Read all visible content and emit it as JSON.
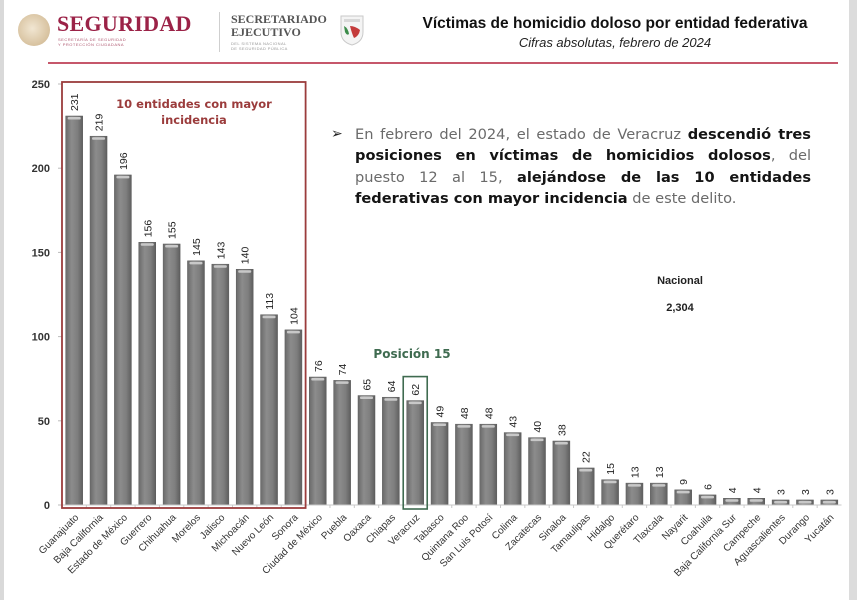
{
  "header": {
    "brand_primary": "SEGURIDAD",
    "brand_primary_sub_line1": "SECRETARÍA DE SEGURIDAD",
    "brand_primary_sub_line2": "Y PROTECCIÓN CIUDADANA",
    "brand_secondary_line1": "SECRETARIADO",
    "brand_secondary_line2": "EJECUTIVO",
    "brand_secondary_sub_line1": "DEL SISTEMA NACIONAL",
    "brand_secondary_sub_line2": "DE SEGURIDAD PÚBLICA",
    "icons": [
      "national-seal-icon",
      "sesnsp-shield-icon"
    ]
  },
  "note": {
    "bullet": "➢",
    "segments": [
      {
        "text": "En febrero del 2024, el estado de Veracruz ",
        "bold": false
      },
      {
        "text": "descendió tres posiciones en víctimas de homicidios dolosos",
        "bold": true
      },
      {
        "text": ", del puesto 12 al 15, ",
        "bold": false
      },
      {
        "text": "alejándose de las 10 entidades federativas con mayor incidencia",
        "bold": true
      },
      {
        "text": " de este delito.",
        "bold": false
      }
    ]
  },
  "national": {
    "label": "Nacional",
    "value": "2,304"
  },
  "colors": {
    "bar": "#7f7f7f",
    "bar_highlight": "#c8c8c8",
    "top10_box": "#9b3c3c",
    "position_box": "#3f6b50",
    "brand": "#9b2247",
    "rule": "#c6576b"
  },
  "chart_data": {
    "type": "bar",
    "title": "Víctimas de homicidio doloso por entidad federativa",
    "subtitle": "Cifras absolutas, febrero de 2024",
    "xlabel": "",
    "ylabel": "",
    "ylim": [
      0,
      250
    ],
    "yticks": [
      0,
      50,
      100,
      150,
      200,
      250
    ],
    "grid": false,
    "legend": "none",
    "categories": [
      "Guanajuato",
      "Baja California",
      "Estado de México",
      "Guerrero",
      "Chihuahua",
      "Morelos",
      "Jalisco",
      "Michoacán",
      "Nuevo León",
      "Sonora",
      "Ciudad de México",
      "Puebla",
      "Oaxaca",
      "Chiapas",
      "Veracruz",
      "Tabasco",
      "Quintana Roo",
      "San Luis Potosí",
      "Colima",
      "Zacatecas",
      "Sinaloa",
      "Tamaulipas",
      "Hidalgo",
      "Querétaro",
      "Tlaxcala",
      "Nayarit",
      "Coahuila",
      "Baja California Sur",
      "Campeche",
      "Aguascalientes",
      "Durango",
      "Yucatán"
    ],
    "values": [
      231,
      219,
      196,
      156,
      155,
      145,
      143,
      140,
      113,
      104,
      76,
      74,
      65,
      64,
      62,
      49,
      48,
      48,
      43,
      40,
      38,
      22,
      15,
      13,
      13,
      9,
      6,
      4,
      4,
      3,
      3,
      3
    ],
    "annotations": [
      {
        "text_line1": "10 entidades con mayor",
        "text_line2": "incidencia",
        "type": "box",
        "range_categories": [
          "Guanajuato",
          "Sonora"
        ]
      },
      {
        "text": "Posición 15",
        "type": "box",
        "category": "Veracruz"
      }
    ]
  }
}
